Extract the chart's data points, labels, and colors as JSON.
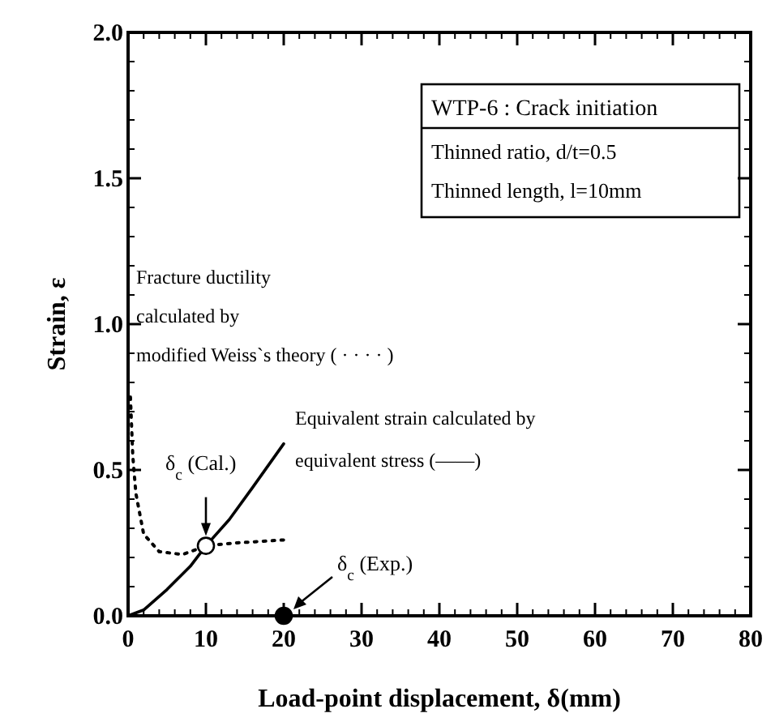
{
  "chart_data": {
    "type": "line",
    "xlabel": "Load-point displacement, δ(mm)",
    "ylabel": "Strain, ε",
    "xlim": [
      0,
      80
    ],
    "ylim": [
      0,
      2.0
    ],
    "xticks": [
      0,
      10,
      20,
      30,
      40,
      50,
      60,
      70,
      80
    ],
    "yticks": [
      {
        "value": 0,
        "label": "0.0"
      },
      {
        "value": 0.5,
        "label": "0.5"
      },
      {
        "value": 1,
        "label": "1.0"
      },
      {
        "value": 1.5,
        "label": "1.5"
      },
      {
        "value": 2,
        "label": "2.0"
      }
    ],
    "grid": false,
    "series": [
      {
        "line_style": "solid",
        "color": "#000000",
        "x": [
          0,
          2,
          5,
          8,
          10,
          13,
          16,
          20
        ],
        "values": [
          0,
          0.02,
          0.09,
          0.17,
          0.24,
          0.33,
          0.44,
          0.59
        ]
      },
      {
        "line_style": "dotted",
        "color": "#000000",
        "x": [
          0.3,
          0.6,
          1,
          2,
          4,
          7,
          10,
          14,
          20
        ],
        "values": [
          0.75,
          0.55,
          0.42,
          0.28,
          0.22,
          0.21,
          0.24,
          0.25,
          0.26
        ]
      },
      {
        "type": "scatter",
        "marker": "circle",
        "color": "#ffffff",
        "x": [
          10
        ],
        "values": [
          0.24
        ]
      },
      {
        "type": "scatter",
        "marker": "circle",
        "color": "#000000",
        "x": [
          20
        ],
        "values": [
          0
        ]
      }
    ],
    "annotations": [
      "WTP-6 : Crack initiation",
      "Thinned ratio, d/t=0.5",
      "Thinned length, l=10mm",
      "Fracture ductility",
      "calculated by",
      "modified Weiss`s theory ( · · · · )",
      "Equivalent strain calculated by",
      "equivalent stress (——)",
      "δ$_{c}$ (Cal.)",
      "δ$_{c}$ (Exp.)"
    ]
  }
}
